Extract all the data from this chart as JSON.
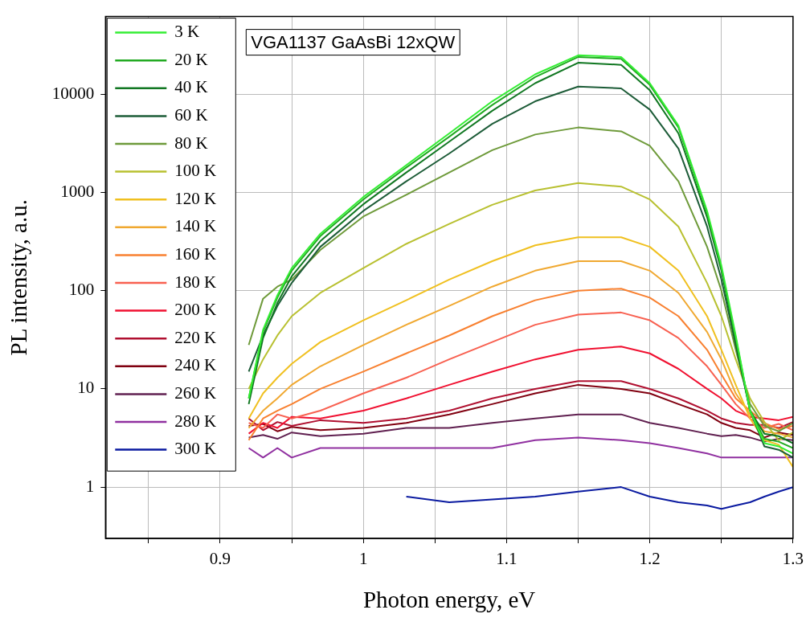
{
  "chart_data": {
    "type": "line",
    "xlabel": "Photon energy, eV",
    "ylabel": "PL intensity, a.u.",
    "annotations": [
      "VGA1137 GaAsBi 12xQW"
    ],
    "x": [
      0.92,
      0.93,
      0.94,
      0.95,
      0.97,
      1.0,
      1.03,
      1.06,
      1.09,
      1.12,
      1.15,
      1.18,
      1.2,
      1.22,
      1.24,
      1.25,
      1.26,
      1.27,
      1.28,
      1.29,
      1.3
    ],
    "series": [
      {
        "name": "3 K",
        "color": "#33ee33",
        "values": [
          8,
          40,
          90,
          170,
          380,
          900,
          1900,
          4000,
          8500,
          16000,
          25000,
          24000,
          13000,
          4800,
          650,
          180,
          35,
          6,
          2.8,
          2.6,
          2.2
        ]
      },
      {
        "name": "20 K",
        "color": "#22aa22",
        "values": [
          8,
          38,
          85,
          160,
          360,
          850,
          1800,
          3700,
          7800,
          15000,
          24000,
          23000,
          12500,
          4600,
          620,
          170,
          33,
          6,
          3.1,
          2.9,
          2.5
        ]
      },
      {
        "name": "40 K",
        "color": "#117722",
        "values": [
          7,
          33,
          75,
          140,
          320,
          760,
          1600,
          3300,
          6800,
          13000,
          21000,
          20000,
          11000,
          4000,
          560,
          160,
          30,
          6,
          3.5,
          3.3,
          2.8
        ]
      },
      {
        "name": "60 K",
        "color": "#1d5c38",
        "values": [
          15,
          35,
          70,
          120,
          280,
          650,
          1300,
          2500,
          5000,
          8500,
          12000,
          11500,
          7000,
          2800,
          450,
          130,
          28,
          6,
          2.6,
          2.4,
          2.0
        ]
      },
      {
        "name": "80 K",
        "color": "#6e9a3a",
        "values": [
          28,
          83,
          110,
          130,
          260,
          570,
          950,
          1600,
          2700,
          3900,
          4600,
          4200,
          3000,
          1300,
          280,
          100,
          25,
          7,
          4.2,
          3.7,
          4.5
        ]
      },
      {
        "name": "100 K",
        "color": "#b8c030",
        "values": [
          10,
          20,
          35,
          55,
          95,
          170,
          300,
          480,
          750,
          1050,
          1250,
          1150,
          850,
          450,
          120,
          55,
          20,
          8,
          4.6,
          3.0,
          3.6
        ]
      },
      {
        "name": "120 K",
        "color": "#f0c020",
        "values": [
          5,
          9,
          13,
          18,
          30,
          50,
          80,
          130,
          200,
          290,
          350,
          350,
          280,
          160,
          55,
          25,
          11,
          5,
          3.0,
          2.7,
          1.6
        ]
      },
      {
        "name": "140 K",
        "color": "#f0a830",
        "values": [
          4,
          6,
          8,
          11,
          17,
          28,
          45,
          70,
          110,
          160,
          200,
          200,
          160,
          95,
          38,
          20,
          9,
          5.5,
          3.7,
          3.5,
          3.2
        ]
      },
      {
        "name": "160 K",
        "color": "#f88030",
        "values": [
          3,
          5,
          6,
          7,
          10,
          15,
          23,
          35,
          55,
          80,
          100,
          105,
          85,
          55,
          25,
          14,
          8,
          6,
          4.5,
          3.9,
          4.2
        ]
      },
      {
        "name": "180 K",
        "color": "#f86050",
        "values": [
          4.5,
          4,
          5.5,
          5,
          6,
          9,
          13,
          20,
          30,
          45,
          57,
          60,
          50,
          33,
          17,
          11,
          7,
          5,
          4.0,
          4.4,
          3.8
        ]
      },
      {
        "name": "200 K",
        "color": "#f01030",
        "values": [
          3.5,
          4.5,
          4,
          5.2,
          5,
          6,
          8,
          11,
          15,
          20,
          25,
          27,
          23,
          16,
          10,
          8,
          6,
          5.2,
          5.0,
          4.8,
          5.2
        ]
      },
      {
        "name": "220 K",
        "color": "#b01030",
        "values": [
          5,
          3.8,
          4.6,
          4.2,
          4.8,
          4.5,
          5,
          6,
          8,
          10,
          12,
          12,
          10,
          8,
          6,
          5,
          4.5,
          4.3,
          4.3,
          4.0,
          4.6
        ]
      },
      {
        "name": "240 K",
        "color": "#800010",
        "values": [
          4.2,
          4.4,
          3.7,
          4.1,
          3.8,
          4,
          4.5,
          5.5,
          7,
          9,
          11,
          10,
          9,
          7,
          5.5,
          4.5,
          4,
          3.8,
          3.2,
          3.6,
          3.4
        ]
      },
      {
        "name": "260 K",
        "color": "#602050",
        "values": [
          3.2,
          3.4,
          3.1,
          3.6,
          3.3,
          3.5,
          4,
          4,
          4.5,
          5,
          5.5,
          5.5,
          4.5,
          4,
          3.5,
          3.3,
          3.4,
          3.2,
          2.9,
          3.1,
          3.0
        ]
      },
      {
        "name": "280 K",
        "color": "#9030a0",
        "values": [
          2.5,
          2,
          2.5,
          2,
          2.5,
          2.5,
          2.5,
          2.5,
          2.5,
          3,
          3.2,
          3,
          2.8,
          2.5,
          2.2,
          2,
          2,
          2,
          2,
          2,
          2
        ]
      },
      {
        "name": "300 K",
        "color": "#0a1aa0",
        "values": [
          null,
          null,
          null,
          null,
          null,
          null,
          0.8,
          0.7,
          0.75,
          0.8,
          0.9,
          1,
          0.8,
          0.7,
          0.65,
          0.6,
          0.65,
          0.7,
          0.8,
          0.9,
          1
        ]
      }
    ],
    "log": "y",
    "xlim": [
      0.82,
      1.3
    ],
    "ylim": [
      0.31,
      62000
    ],
    "xticks": [
      {
        "value": 0.85,
        "label": null
      },
      0.9,
      {
        "value": 0.95,
        "label": null
      },
      1.0,
      {
        "value": 1.05,
        "label": null
      },
      1.1,
      {
        "value": 1.15,
        "label": null
      },
      1.2,
      {
        "value": 1.25,
        "label": null
      },
      1.3
    ],
    "yticks": [
      1,
      10,
      100,
      1000,
      10000
    ],
    "grid": true,
    "legend": "top left",
    "line_style": "solid",
    "marker": "none"
  }
}
